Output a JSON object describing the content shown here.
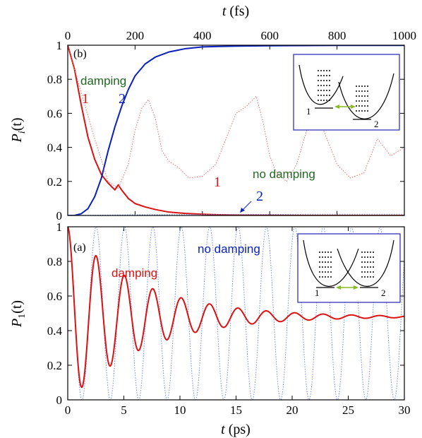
{
  "colors": {
    "red": "#dd1111",
    "blue": "#0a22bb",
    "green": "#226622",
    "inset_frame": "#3333bb",
    "coupling_arrow": "#88bb22",
    "dotted_red": "#ee6666",
    "dotted_blue": "#6688ee"
  },
  "chart_data": [
    {
      "panel": "top",
      "type": "line",
      "tag": "(b)",
      "xlabel_top": "t (fs)",
      "xlabel_top_var": "t",
      "xlabel_top_unit": " (fs)",
      "ylabel_main": "P",
      "ylabel_sub": "i",
      "ylabel_arg": "(t)",
      "xlim": [
        0,
        1000
      ],
      "ylim": [
        0,
        1
      ],
      "x_ticks": [
        0,
        200,
        400,
        600,
        800,
        1000
      ],
      "y_ticks": [
        0,
        0.2,
        0.4,
        0.6,
        0.8,
        1
      ],
      "y_tick_labels": [
        "0",
        "0.2",
        "0.4",
        "0.6",
        "0.8",
        "1"
      ],
      "annotations": {
        "damping": "damping",
        "no_damping": "no damping",
        "curve1_damped": "1",
        "curve2_damped": "2",
        "curve1_undamped": "1",
        "curve2_undamped": "2"
      },
      "inset_labels": [
        "1",
        "2"
      ],
      "series": [
        {
          "label": "1",
          "style": "solid-red",
          "x": [
            0,
            20,
            40,
            60,
            80,
            100,
            120,
            140,
            150,
            160,
            180,
            200,
            230,
            260,
            300,
            350,
            400,
            450,
            500,
            600,
            700,
            800,
            900,
            1000
          ],
          "y": [
            1.0,
            0.86,
            0.65,
            0.46,
            0.33,
            0.24,
            0.19,
            0.15,
            0.18,
            0.15,
            0.1,
            0.07,
            0.05,
            0.035,
            0.02,
            0.012,
            0.007,
            0.004,
            0.002,
            0.001,
            0.0,
            0.0,
            0.0,
            0.0
          ]
        },
        {
          "label": "2",
          "style": "solid-blue",
          "x": [
            0,
            20,
            40,
            60,
            80,
            100,
            120,
            140,
            160,
            180,
            200,
            230,
            260,
            300,
            350,
            400,
            450,
            500,
            600,
            700,
            800,
            900,
            1000
          ],
          "y": [
            0.0,
            0.0,
            0.01,
            0.04,
            0.11,
            0.22,
            0.38,
            0.52,
            0.64,
            0.74,
            0.82,
            0.89,
            0.93,
            0.96,
            0.98,
            0.99,
            0.993,
            0.995,
            0.997,
            0.998,
            0.999,
            0.999,
            0.999
          ]
        },
        {
          "label": "1",
          "style": "dotted-red",
          "x": [
            0,
            40,
            80,
            120,
            150,
            180,
            200,
            220,
            240,
            260,
            280,
            300,
            330,
            360,
            400,
            440,
            470,
            500,
            530,
            560,
            580,
            600,
            620,
            650,
            680,
            710,
            740,
            770,
            800,
            840,
            880,
            920,
            960,
            1000
          ],
          "y": [
            1.0,
            0.72,
            0.45,
            0.2,
            0.16,
            0.3,
            0.5,
            0.63,
            0.68,
            0.57,
            0.38,
            0.32,
            0.28,
            0.22,
            0.23,
            0.3,
            0.45,
            0.6,
            0.64,
            0.7,
            0.55,
            0.35,
            0.25,
            0.2,
            0.3,
            0.5,
            0.6,
            0.45,
            0.3,
            0.22,
            0.25,
            0.45,
            0.35,
            0.4
          ]
        },
        {
          "label": "2",
          "style": "dotted-blue",
          "x": [
            0,
            100,
            200,
            300,
            400,
            500,
            600,
            700,
            800,
            900,
            1000
          ],
          "y": [
            0.0,
            0.002,
            0.004,
            0.005,
            0.006,
            0.006,
            0.006,
            0.007,
            0.007,
            0.007,
            0.007
          ]
        }
      ]
    },
    {
      "panel": "bottom",
      "type": "line",
      "tag": "(a)",
      "xlabel": "t (ps)",
      "xlabel_var": "t",
      "xlabel_unit": " (ps)",
      "ylabel_main": "P",
      "ylabel_sub": "1",
      "ylabel_arg": "(t)",
      "xlim": [
        0,
        30
      ],
      "ylim": [
        0,
        1
      ],
      "x_ticks": [
        0,
        5,
        10,
        15,
        20,
        25,
        30
      ],
      "y_ticks": [
        0,
        0.2,
        0.4,
        0.6,
        0.8,
        1
      ],
      "y_tick_labels": [
        "0",
        "0.2",
        "0.4",
        "0.6",
        "0.8",
        "1"
      ],
      "annotations": {
        "damping": "damping",
        "no_damping": "no damping"
      },
      "inset_labels": [
        "1",
        "2"
      ],
      "oscillation": {
        "period_ps": 2.53,
        "decay_time_ps": 6.5,
        "equilibrium": 0.48
      },
      "series": [
        {
          "label": "damping",
          "style": "solid-red",
          "x": [
            0,
            1.27,
            2.53,
            3.8,
            5.06,
            6.33,
            7.59,
            8.86,
            10.12,
            12.65,
            15.18,
            17.71,
            20.24,
            25.3,
            30
          ],
          "y": [
            1.0,
            0.02,
            0.93,
            0.12,
            0.8,
            0.22,
            0.7,
            0.3,
            0.63,
            0.58,
            0.55,
            0.52,
            0.51,
            0.49,
            0.48
          ]
        },
        {
          "label": "no damping",
          "style": "dotted-blue",
          "x": [
            0,
            1.27,
            2.53,
            3.8,
            5.06,
            6.33,
            7.59,
            8.86,
            10.12,
            30
          ],
          "y": [
            1.0,
            0.0,
            1.0,
            0.0,
            1.0,
            0.0,
            1.0,
            0.0,
            1.0,
            1.0
          ]
        }
      ]
    }
  ]
}
